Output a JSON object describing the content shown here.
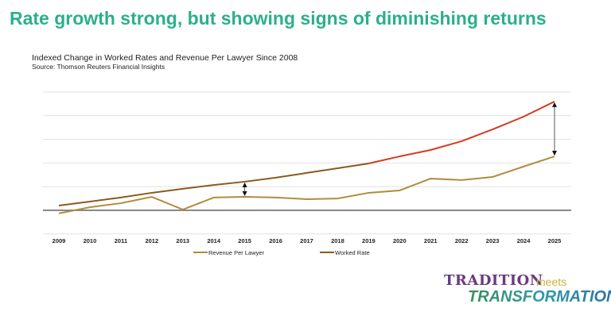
{
  "headline": "Rate growth strong, but showing signs of diminishing returns",
  "chart_data": {
    "type": "line",
    "title": "Indexed Change in Worked Rates and Revenue Per Lawyer Since 2008",
    "source": "Source: Thomson Reuters Financial Insights",
    "x": [
      "2009",
      "2010",
      "2011",
      "2012",
      "2013",
      "2014",
      "2015",
      "2016",
      "2017",
      "2018",
      "2019",
      "2020",
      "2021",
      "2022",
      "2023",
      "2024",
      "2025"
    ],
    "ylim": [
      -1,
      5
    ],
    "grid": true,
    "legend": "bottom",
    "series": [
      {
        "name": "Revenue Per Lawyer",
        "color": "#B08D3C",
        "values": [
          -0.13,
          0.13,
          0.3,
          0.57,
          0.03,
          0.54,
          0.57,
          0.54,
          0.47,
          0.5,
          0.74,
          0.84,
          1.34,
          1.28,
          1.41,
          1.85,
          2.28
        ]
      },
      {
        "name": "Worked Rate",
        "color": "#8B5A1E",
        "highlight_color": "#D9391E",
        "values": [
          0.2,
          0.37,
          0.54,
          0.74,
          0.91,
          1.07,
          1.21,
          1.38,
          1.58,
          1.78,
          1.98,
          2.28,
          2.55,
          2.92,
          3.42,
          3.96,
          4.6
        ]
      }
    ],
    "annotations": [
      {
        "type": "gap-arrow",
        "x": "2015"
      },
      {
        "type": "gap-arrow",
        "x": "2025"
      }
    ]
  },
  "logo": {
    "line1": "TRADITION",
    "line2": "meets",
    "line3": "TRANSFORMATION"
  }
}
